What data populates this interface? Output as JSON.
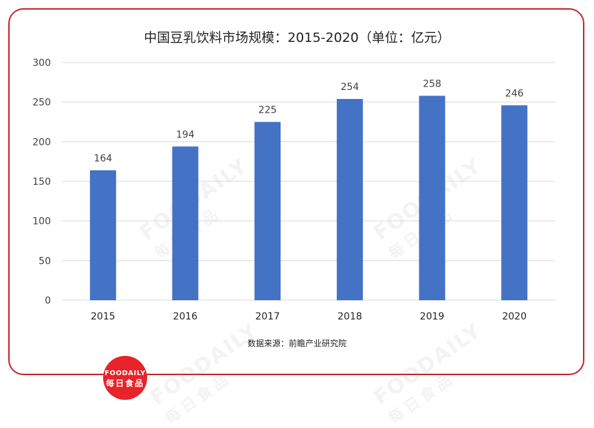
{
  "chart_data": {
    "type": "bar",
    "title": "中国豆乳饮料市场规模：2015-2020（单位：亿元）",
    "categories": [
      "2015",
      "2016",
      "2017",
      "2018",
      "2019",
      "2020"
    ],
    "values": [
      164,
      194,
      225,
      254,
      258,
      246
    ],
    "data_labels": [
      "164",
      "194",
      "225",
      "254",
      "258",
      "246"
    ],
    "y_ticks": [
      "0",
      "50",
      "100",
      "150",
      "200",
      "250",
      "300"
    ],
    "ylim": [
      0,
      300
    ],
    "y_step": 50,
    "grid": true,
    "legend": "none",
    "bar_color": "#4472c4"
  },
  "source_note": "数据来源：前瞻产业研究院",
  "watermark": {
    "en": "FOODAILY",
    "cn": "每日食品"
  },
  "logo": {
    "en": "FOODAILY",
    "cn": "每日食品"
  },
  "colors": {
    "border": "#c0222a",
    "logo_bg": "#e8232a",
    "grid": "#d9d9d9",
    "text": "#404040"
  }
}
